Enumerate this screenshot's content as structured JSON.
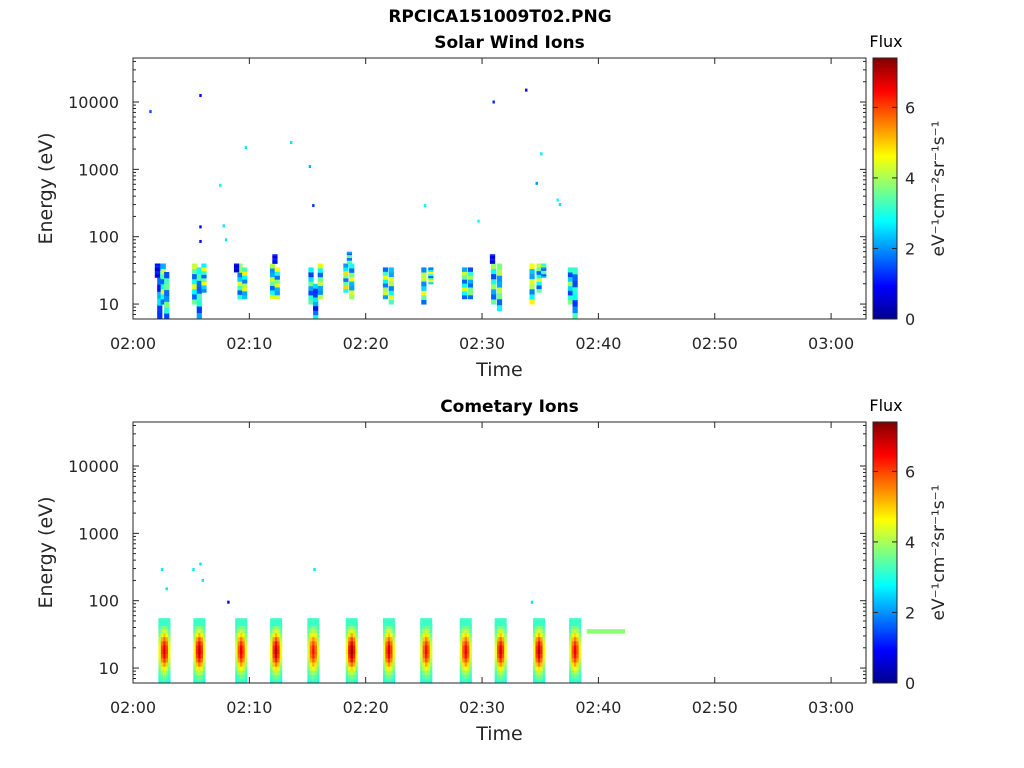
{
  "figure": {
    "title": "RPCICA151009T02.PNG"
  },
  "chart_data": [
    {
      "type": "heatmap",
      "title": "Solar Wind Ions",
      "xlabel": "Time",
      "ylabel": "Energy (eV)",
      "x_ticks": [
        "02:00",
        "02:10",
        "02:20",
        "02:30",
        "02:40",
        "02:50",
        "03:00"
      ],
      "xlim": [
        "02:00",
        "03:03"
      ],
      "y_ticks": [
        10,
        100,
        1000,
        10000
      ],
      "y_scale": "log",
      "ylim": [
        6,
        45000
      ],
      "colorbar": {
        "title": "Flux",
        "unit": "eV⁻¹cm⁻²sr⁻¹s⁻¹",
        "ticks": [
          0,
          2,
          4,
          6
        ],
        "range": [
          0,
          7.4
        ],
        "colormap": "jet"
      },
      "data_note": "Flux values estimated from colour; cells are [minute, energy_low_eV, energy_high_eV, flux]",
      "cells": [
        [
          2.3,
          6,
          40,
          2.5
        ],
        [
          2.6,
          10,
          40,
          4.0
        ],
        [
          2.9,
          6,
          30,
          3.5
        ],
        [
          2.1,
          25,
          40,
          1.2
        ],
        [
          5.3,
          10,
          40,
          4.0
        ],
        [
          5.7,
          6,
          35,
          3.2
        ],
        [
          6.1,
          15,
          40,
          4.2
        ],
        [
          9.2,
          12,
          40,
          4.0
        ],
        [
          9.6,
          12,
          35,
          4.3
        ],
        [
          8.9,
          30,
          40,
          1.0
        ],
        [
          12.0,
          12,
          40,
          4.0
        ],
        [
          12.4,
          12,
          35,
          4.2
        ],
        [
          12.2,
          40,
          55,
          1.2
        ],
        [
          15.3,
          10,
          35,
          3.3
        ],
        [
          15.7,
          6,
          20,
          2.5
        ],
        [
          16.1,
          12,
          40,
          4.0
        ],
        [
          18.3,
          15,
          40,
          4.5
        ],
        [
          18.8,
          12,
          40,
          4.2
        ],
        [
          18.6,
          40,
          60,
          3.6
        ],
        [
          21.7,
          12,
          35,
          4.2
        ],
        [
          22.2,
          10,
          35,
          4.3
        ],
        [
          25.0,
          10,
          35,
          4.2
        ],
        [
          25.6,
          20,
          35,
          4.2
        ],
        [
          28.5,
          12,
          35,
          4.0
        ],
        [
          29.0,
          12,
          35,
          3.7
        ],
        [
          31.0,
          10,
          40,
          3.6
        ],
        [
          31.5,
          8,
          40,
          4.0
        ],
        [
          30.9,
          40,
          55,
          1.2
        ],
        [
          34.3,
          10,
          40,
          4.3
        ],
        [
          34.9,
          15,
          40,
          4.0
        ],
        [
          35.3,
          25,
          40,
          3.5
        ],
        [
          37.6,
          10,
          35,
          3.5
        ],
        [
          38.0,
          6,
          35,
          3.0
        ]
      ],
      "sparse_points": [
        [
          1.5,
          7200,
          1.5
        ],
        [
          5.8,
          12500,
          1.0
        ],
        [
          9.7,
          2100,
          2.6
        ],
        [
          13.6,
          2500,
          2.6
        ],
        [
          15.2,
          1100,
          2.2
        ],
        [
          15.5,
          290,
          1.3
        ],
        [
          7.5,
          580,
          2.8
        ],
        [
          7.8,
          145,
          2.6
        ],
        [
          8.0,
          90,
          2.6
        ],
        [
          5.8,
          140,
          0.8
        ],
        [
          5.8,
          85,
          1.0
        ],
        [
          25.1,
          290,
          2.8
        ],
        [
          29.7,
          170,
          2.8
        ],
        [
          31.0,
          10000,
          1.2
        ],
        [
          33.8,
          15000,
          0.8
        ],
        [
          35.1,
          1700,
          2.6
        ],
        [
          34.7,
          620,
          2.0
        ],
        [
          36.5,
          350,
          2.8
        ],
        [
          36.7,
          300,
          2.6
        ]
      ]
    },
    {
      "type": "heatmap",
      "title": "Cometary Ions",
      "xlabel": "Time",
      "ylabel": "Energy (eV)",
      "x_ticks": [
        "02:00",
        "02:10",
        "02:20",
        "02:30",
        "02:40",
        "02:50",
        "03:00"
      ],
      "xlim": [
        "02:00",
        "03:03"
      ],
      "y_ticks": [
        10,
        100,
        1000,
        10000
      ],
      "y_scale": "log",
      "ylim": [
        6,
        45000
      ],
      "colorbar": {
        "title": "Flux",
        "unit": "eV⁻¹cm⁻²sr⁻¹s⁻¹",
        "ticks": [
          0,
          2,
          4,
          6
        ],
        "range": [
          0,
          7.4
        ],
        "colormap": "jet"
      },
      "data_note": "Flux values estimated from colour; columns are [minute, peak_flux]",
      "columns": [
        [
          2.7,
          6.8
        ],
        [
          5.7,
          7.0
        ],
        [
          9.3,
          6.6
        ],
        [
          12.3,
          7.0
        ],
        [
          15.5,
          6.4
        ],
        [
          18.8,
          7.2
        ],
        [
          22.0,
          6.8
        ],
        [
          25.2,
          6.5
        ],
        [
          28.6,
          6.6
        ],
        [
          31.6,
          6.8
        ],
        [
          34.9,
          7.0
        ],
        [
          38.0,
          6.6
        ]
      ],
      "band": {
        "from_minute": 39.0,
        "to_minute": 42.3,
        "energy_eV": 35,
        "flux": 3.8
      },
      "sparse_points": [
        [
          2.5,
          290,
          2.6
        ],
        [
          5.2,
          290,
          2.6
        ],
        [
          5.8,
          350,
          2.6
        ],
        [
          2.9,
          150,
          2.6
        ],
        [
          6.0,
          200,
          2.6
        ],
        [
          8.2,
          95,
          0.6
        ],
        [
          15.6,
          290,
          2.6
        ],
        [
          34.3,
          95,
          2.6
        ]
      ]
    }
  ]
}
